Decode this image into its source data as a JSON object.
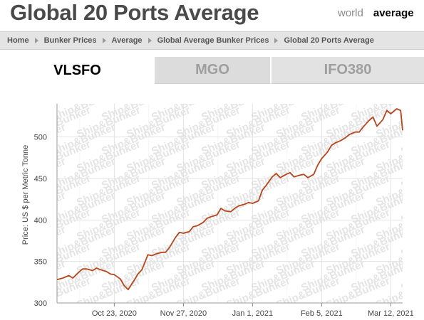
{
  "header": {
    "title": "Global 20 Ports Average",
    "view_world": "world",
    "view_average": "average"
  },
  "breadcrumb": [
    "Home",
    "Bunker Prices",
    "Average",
    "Global Average Bunker Prices",
    "Global 20 Ports Average"
  ],
  "tabs": [
    {
      "label": "VLSFO",
      "active": true
    },
    {
      "label": "MGO",
      "active": false
    },
    {
      "label": "IFO380",
      "active": false
    }
  ],
  "watermark": "Ship&Bunker",
  "colors": {
    "line": "#b5451b",
    "grid": "#e3e3e3",
    "tab_inactive": "#dcdcdc",
    "breadcrumb_bg": "#e4e4e4"
  },
  "chart_data": {
    "type": "line",
    "ylabel": "Price: US $ per Metric Tonne",
    "xlabel": "",
    "ylim": [
      300,
      540
    ],
    "y_ticks": [
      300,
      350,
      400,
      450,
      500
    ],
    "x_ticks": [
      "Oct 23, 2020",
      "Nov 27, 2020",
      "Jan 1, 2021",
      "Feb 5, 2021",
      "Mar 12, 2021"
    ],
    "xlim": [
      "2020-09-24",
      "2021-03-18"
    ],
    "grid": true,
    "series": [
      {
        "name": "",
        "x": [
          "2020-09-24",
          "2020-09-27",
          "2020-09-30",
          "2020-10-02",
          "2020-10-05",
          "2020-10-07",
          "2020-10-09",
          "2020-10-12",
          "2020-10-14",
          "2020-10-16",
          "2020-10-19",
          "2020-10-21",
          "2020-10-23",
          "2020-10-26",
          "2020-10-28",
          "2020-10-30",
          "2020-11-02",
          "2020-11-04",
          "2020-11-06",
          "2020-11-09",
          "2020-11-11",
          "2020-11-13",
          "2020-11-16",
          "2020-11-18",
          "2020-11-20",
          "2020-11-23",
          "2020-11-25",
          "2020-11-27",
          "2020-11-30",
          "2020-12-02",
          "2020-12-04",
          "2020-12-07",
          "2020-12-09",
          "2020-12-11",
          "2020-12-14",
          "2020-12-16",
          "2020-12-18",
          "2020-12-21",
          "2020-12-23",
          "2020-12-25",
          "2020-12-28",
          "2020-12-30",
          "2021-01-01",
          "2021-01-04",
          "2021-01-06",
          "2021-01-08",
          "2021-01-11",
          "2021-01-13",
          "2021-01-15",
          "2021-01-18",
          "2021-01-20",
          "2021-01-22",
          "2021-01-25",
          "2021-01-27",
          "2021-01-29",
          "2021-02-01",
          "2021-02-03",
          "2021-02-05",
          "2021-02-08",
          "2021-02-10",
          "2021-02-12",
          "2021-02-15",
          "2021-02-17",
          "2021-02-19",
          "2021-02-22",
          "2021-02-24",
          "2021-02-26",
          "2021-03-01",
          "2021-03-03",
          "2021-03-05",
          "2021-03-08",
          "2021-03-10",
          "2021-03-12",
          "2021-03-15",
          "2021-03-17",
          "2021-03-18"
        ],
        "y": [
          328,
          330,
          333,
          330,
          337,
          341,
          341,
          339,
          342,
          340,
          338,
          335,
          334,
          329,
          321,
          316,
          327,
          335,
          340,
          358,
          357,
          359,
          361,
          361,
          367,
          379,
          385,
          384,
          386,
          392,
          393,
          397,
          402,
          404,
          406,
          414,
          411,
          410,
          414,
          417,
          419,
          421,
          420,
          423,
          436,
          442,
          452,
          456,
          451,
          455,
          457,
          452,
          454,
          455,
          451,
          455,
          466,
          474,
          482,
          490,
          493,
          496,
          499,
          503,
          506,
          506,
          512,
          520,
          524,
          513,
          521,
          532,
          528,
          534,
          532,
          508
        ]
      }
    ]
  }
}
